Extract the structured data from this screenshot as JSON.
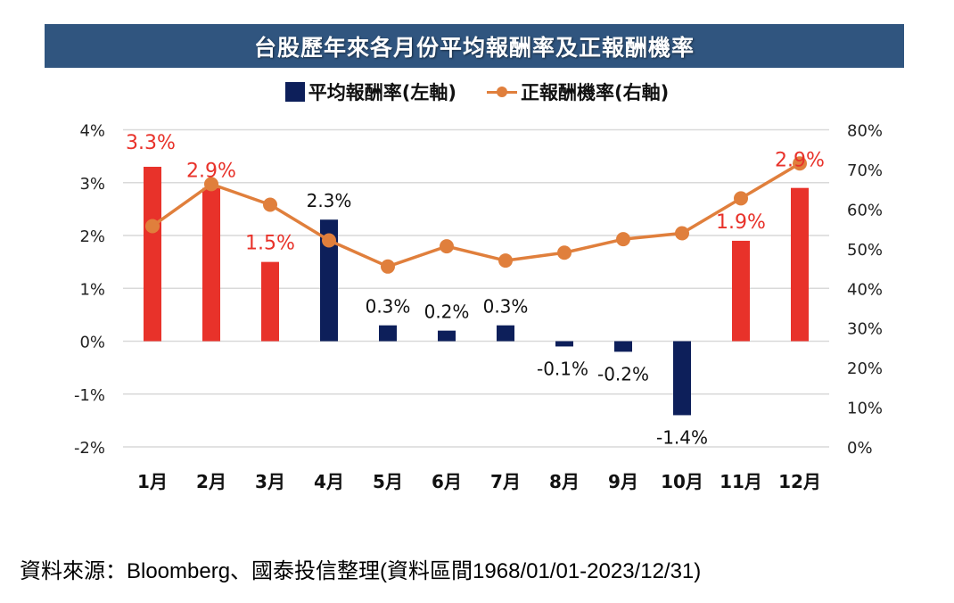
{
  "chart_data": {
    "type": "bar+line",
    "title": "台股歷年來各月份平均報酬率及正報酬機率",
    "categories": [
      "1月",
      "2月",
      "3月",
      "4月",
      "5月",
      "6月",
      "7月",
      "8月",
      "9月",
      "10月",
      "11月",
      "12月"
    ],
    "series": [
      {
        "name": "平均報酬率(左軸)",
        "type": "bar",
        "axis": "left",
        "values": [
          3.3,
          2.9,
          1.5,
          2.3,
          0.3,
          0.2,
          0.3,
          -0.1,
          -0.2,
          -1.4,
          1.9,
          2.9
        ],
        "labels": [
          "3.3%",
          "2.9%",
          "1.5%",
          "2.3%",
          "0.3%",
          "0.2%",
          "0.3%",
          "-0.1%",
          "-0.2%",
          "-1.4%",
          "1.9%",
          "2.9%"
        ],
        "highlight": [
          true,
          true,
          true,
          false,
          false,
          false,
          false,
          false,
          false,
          false,
          true,
          true
        ]
      },
      {
        "name": "正報酬機率(右軸)",
        "type": "line",
        "axis": "right",
        "values": [
          55.7,
          66.3,
          61.1,
          52.1,
          45.5,
          50.6,
          47.0,
          49.0,
          52.4,
          53.9,
          62.7,
          71.5
        ]
      }
    ],
    "left_axis": {
      "ylim": [
        -2,
        4
      ],
      "ticks": [
        4,
        3,
        2,
        1,
        0,
        -1,
        -2
      ],
      "tick_labels": [
        "4%",
        "3%",
        "2%",
        "1%",
        "0%",
        "-1%",
        "-2%"
      ]
    },
    "right_axis": {
      "ylim": [
        0,
        80
      ],
      "ticks": [
        80,
        70,
        60,
        50,
        40,
        30,
        20,
        10,
        0
      ],
      "tick_labels": [
        "80%",
        "70%",
        "60%",
        "50%",
        "40%",
        "30%",
        "20%",
        "10%",
        "0%"
      ]
    },
    "grid": true,
    "legend_position": "top-center",
    "colors": {
      "bar_highlight": "#e8322a",
      "bar_default": "#0d1f5a",
      "line": "#e07f3c",
      "title_bg": "#30557f",
      "label_highlight": "#e8322a",
      "label_default": "#111111",
      "grid": "#d9d9d9"
    }
  },
  "header": {
    "title": "台股歷年來各月份平均報酬率及正報酬機率"
  },
  "legend": {
    "bar_label": "平均報酬率(左軸)",
    "line_label": "正報酬機率(右軸)"
  },
  "footer": {
    "source": "資料來源：Bloomberg、國泰投信整理(資料區間1968/01/01-2023/12/31)"
  }
}
